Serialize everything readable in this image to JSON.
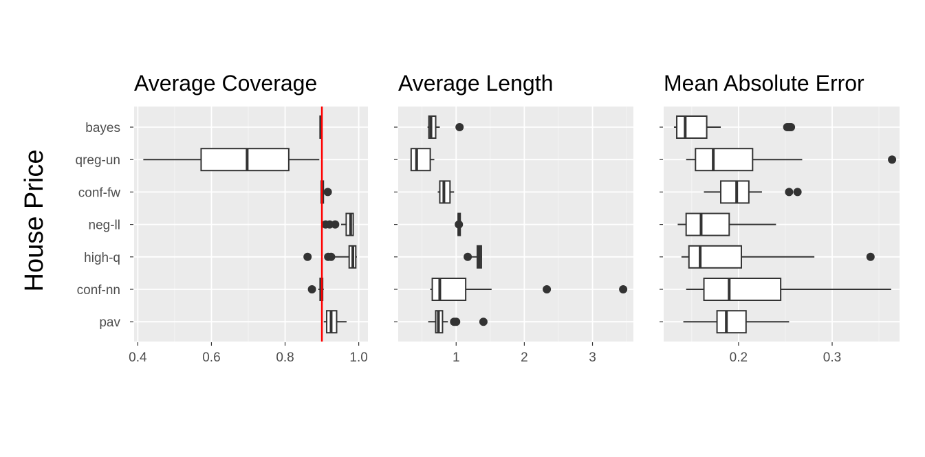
{
  "figure": {
    "row_label": "House Price",
    "colors": {
      "panel_bg": "#ebebeb",
      "grid": "#ffffff",
      "box_fill": "#ffffff",
      "box_stroke": "#333333",
      "outlier": "#333333",
      "tick_text": "#4d4d4d",
      "reference_line": "#ff0000"
    }
  },
  "chart_data": [
    {
      "type": "box",
      "title": "Average Coverage",
      "xlabel": "",
      "ylabel": "House Price",
      "categories": [
        "bayes",
        "qreg-un",
        "conf-fw",
        "neg-ll",
        "high-q",
        "conf-nn",
        "pav"
      ],
      "xlim": [
        0.39,
        1.025
      ],
      "x_ticks": [
        0.4,
        0.6,
        0.8,
        1.0
      ],
      "x_tick_labels": [
        "0.4",
        "0.6",
        "0.8",
        "1.0"
      ],
      "grid": true,
      "reference_line": {
        "x": 0.9,
        "color": "#ff0000"
      },
      "boxes": [
        {
          "category": "bayes",
          "whisker_low": 0.894,
          "q1": 0.895,
          "median": 0.897,
          "q3": 0.899,
          "whisker_high": 0.899,
          "outliers": []
        },
        {
          "category": "qreg-un",
          "whisker_low": 0.415,
          "q1": 0.572,
          "median": 0.697,
          "q3": 0.81,
          "whisker_high": 0.893,
          "outliers": []
        },
        {
          "category": "conf-fw",
          "whisker_low": 0.897,
          "q1": 0.898,
          "median": 0.901,
          "q3": 0.904,
          "whisker_high": 0.906,
          "outliers": [
            0.916
          ]
        },
        {
          "category": "neg-ll",
          "whisker_low": 0.952,
          "q1": 0.966,
          "median": 0.978,
          "q3": 0.985,
          "whisker_high": 0.987,
          "outliers": [
            0.91,
            0.921,
            0.936
          ]
        },
        {
          "category": "high-q",
          "whisker_low": 0.935,
          "q1": 0.974,
          "median": 0.984,
          "q3": 0.992,
          "whisker_high": 0.995,
          "outliers": [
            0.861,
            0.917,
            0.925
          ]
        },
        {
          "category": "conf-nn",
          "whisker_low": 0.89,
          "q1": 0.895,
          "median": 0.898,
          "q3": 0.902,
          "whisker_high": 0.905,
          "outliers": [
            0.873
          ]
        },
        {
          "category": "pav",
          "whisker_low": 0.905,
          "q1": 0.913,
          "median": 0.925,
          "q3": 0.94,
          "whisker_high": 0.967,
          "outliers": []
        }
      ]
    },
    {
      "type": "box",
      "title": "Average Length",
      "xlabel": "",
      "ylabel": "",
      "categories": [
        "bayes",
        "qreg-un",
        "conf-fw",
        "neg-ll",
        "high-q",
        "conf-nn",
        "pav"
      ],
      "xlim": [
        0.15,
        3.6
      ],
      "x_ticks": [
        1,
        2,
        3
      ],
      "x_tick_labels": [
        "1",
        "2",
        "3"
      ],
      "grid": true,
      "boxes": [
        {
          "category": "bayes",
          "whisker_low": 0.58,
          "q1": 0.6,
          "median": 0.63,
          "q3": 0.7,
          "whisker_high": 0.76,
          "outliers": [
            1.05
          ]
        },
        {
          "category": "qreg-un",
          "whisker_low": 0.33,
          "q1": 0.34,
          "median": 0.42,
          "q3": 0.62,
          "whisker_high": 0.68,
          "outliers": []
        },
        {
          "category": "conf-fw",
          "whisker_low": 0.73,
          "q1": 0.76,
          "median": 0.82,
          "q3": 0.91,
          "whisker_high": 0.97,
          "outliers": []
        },
        {
          "category": "neg-ll",
          "whisker_low": 1.03,
          "q1": 1.03,
          "median": 1.04,
          "q3": 1.06,
          "whisker_high": 1.06,
          "outliers": [
            1.04
          ]
        },
        {
          "category": "high-q",
          "whisker_low": 1.2,
          "q1": 1.31,
          "median": 1.34,
          "q3": 1.37,
          "whisker_high": 1.38,
          "outliers": [
            1.17
          ]
        },
        {
          "category": "conf-nn",
          "whisker_low": 0.62,
          "q1": 0.65,
          "median": 0.76,
          "q3": 1.14,
          "whisker_high": 1.52,
          "outliers": [
            2.33,
            3.45
          ]
        },
        {
          "category": "pav",
          "whisker_low": 0.59,
          "q1": 0.7,
          "median": 0.74,
          "q3": 0.8,
          "whisker_high": 0.88,
          "outliers": [
            0.97,
            1,
            1.4
          ]
        }
      ]
    },
    {
      "type": "box",
      "title": "Mean Absolute Error",
      "xlabel": "",
      "ylabel": "",
      "categories": [
        "bayes",
        "qreg-un",
        "conf-fw",
        "neg-ll",
        "high-q",
        "conf-nn",
        "pav"
      ],
      "xlim": [
        0.12,
        0.372
      ],
      "x_ticks": [
        0.2,
        0.3
      ],
      "x_tick_labels": [
        "0.2",
        "0.3"
      ],
      "grid": true,
      "boxes": [
        {
          "category": "bayes",
          "whisker_low": 0.131,
          "q1": 0.134,
          "median": 0.143,
          "q3": 0.166,
          "whisker_high": 0.181,
          "outliers": [
            0.252,
            0.254,
            0.256
          ]
        },
        {
          "category": "qreg-un",
          "whisker_low": 0.144,
          "q1": 0.154,
          "median": 0.173,
          "q3": 0.215,
          "whisker_high": 0.268,
          "outliers": [
            0.364
          ]
        },
        {
          "category": "conf-fw",
          "whisker_low": 0.163,
          "q1": 0.181,
          "median": 0.198,
          "q3": 0.211,
          "whisker_high": 0.225,
          "outliers": [
            0.254,
            0.263
          ]
        },
        {
          "category": "neg-ll",
          "whisker_low": 0.135,
          "q1": 0.144,
          "median": 0.16,
          "q3": 0.19,
          "whisker_high": 0.24,
          "outliers": []
        },
        {
          "category": "high-q",
          "whisker_low": 0.139,
          "q1": 0.147,
          "median": 0.159,
          "q3": 0.203,
          "whisker_high": 0.281,
          "outliers": [
            0.341
          ]
        },
        {
          "category": "conf-nn",
          "whisker_low": 0.144,
          "q1": 0.163,
          "median": 0.19,
          "q3": 0.245,
          "whisker_high": 0.363,
          "outliers": []
        },
        {
          "category": "pav",
          "whisker_low": 0.141,
          "q1": 0.177,
          "median": 0.187,
          "q3": 0.208,
          "whisker_high": 0.254,
          "outliers": []
        }
      ]
    }
  ]
}
